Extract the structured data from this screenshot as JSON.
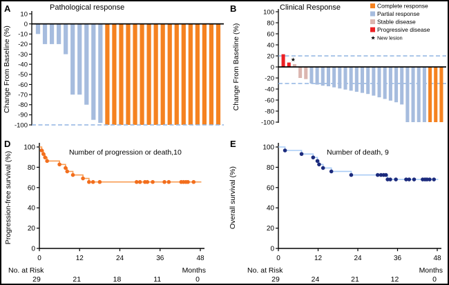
{
  "figure": {
    "background": "#ffffff"
  },
  "colors": {
    "complete": "#F58220",
    "partial": "#A6BCDE",
    "stable": "#DBB6B0",
    "progressive": "#EC2024",
    "star": "#EC2024",
    "dash": "#8FB4E2",
    "axis": "#000000",
    "km_d_line": "#F89C52",
    "km_d_dot": "#F26E1D",
    "km_e_line": "#A9CBF5",
    "km_e_dot": "#1C2B7D"
  },
  "chart_data": [
    {
      "id": "A",
      "panel_label": "A",
      "type": "bar",
      "title": "Pathological response",
      "ylabel": "Change From Baseline (%)",
      "ylim": [
        -100,
        10
      ],
      "yticks": [
        10,
        0,
        -10,
        -20,
        -30,
        -40,
        -50,
        -60,
        -70,
        -80,
        -90,
        -100
      ],
      "dashed_lines": [
        -100
      ],
      "bars": [
        {
          "value": -10,
          "category": "partial"
        },
        {
          "value": -20,
          "category": "partial"
        },
        {
          "value": -20,
          "category": "partial"
        },
        {
          "value": -20,
          "category": "partial"
        },
        {
          "value": -30,
          "category": "partial"
        },
        {
          "value": -70,
          "category": "partial"
        },
        {
          "value": -70,
          "category": "partial"
        },
        {
          "value": -80,
          "category": "partial"
        },
        {
          "value": -95,
          "category": "partial"
        },
        {
          "value": -98,
          "category": "partial"
        },
        {
          "value": -100,
          "category": "complete"
        },
        {
          "value": -100,
          "category": "complete"
        },
        {
          "value": -100,
          "category": "complete"
        },
        {
          "value": -100,
          "category": "complete"
        },
        {
          "value": -100,
          "category": "complete"
        },
        {
          "value": -100,
          "category": "complete"
        },
        {
          "value": -100,
          "category": "complete"
        },
        {
          "value": -100,
          "category": "complete"
        },
        {
          "value": -100,
          "category": "complete"
        },
        {
          "value": -100,
          "category": "complete"
        },
        {
          "value": -100,
          "category": "complete"
        },
        {
          "value": -100,
          "category": "complete"
        },
        {
          "value": -100,
          "category": "complete"
        },
        {
          "value": -100,
          "category": "complete"
        },
        {
          "value": -100,
          "category": "complete"
        },
        {
          "value": -100,
          "category": "complete"
        },
        {
          "value": -100,
          "category": "complete"
        }
      ]
    },
    {
      "id": "B",
      "panel_label": "B",
      "type": "bar",
      "title": "Clinical Response",
      "ylabel": "Change From Baseline (%)",
      "ylim": [
        -100,
        100
      ],
      "yticks": [
        100,
        80,
        60,
        40,
        20,
        0,
        -20,
        -40,
        -60,
        -80,
        -100
      ],
      "dashed_lines": [
        20,
        -30
      ],
      "star_annotation": {
        "bar_index": 1,
        "value": 13
      },
      "legend": [
        {
          "label": "Complete response",
          "color": "complete",
          "marker": "square"
        },
        {
          "label": "Partial response",
          "color": "partial",
          "marker": "square"
        },
        {
          "label": "Stable disease",
          "color": "stable",
          "marker": "square"
        },
        {
          "label": "Progressive disease",
          "color": "progressive",
          "marker": "square"
        },
        {
          "label": "New lesion",
          "color": "star",
          "marker": "star"
        }
      ],
      "bars": [
        {
          "value": 23,
          "category": "progressive"
        },
        {
          "value": 8,
          "category": "progressive"
        },
        {
          "value": 5,
          "category": "stable"
        },
        {
          "value": -20,
          "category": "stable"
        },
        {
          "value": -22,
          "category": "stable"
        },
        {
          "value": -30,
          "category": "partial"
        },
        {
          "value": -32,
          "category": "partial"
        },
        {
          "value": -34,
          "category": "partial"
        },
        {
          "value": -35,
          "category": "partial"
        },
        {
          "value": -37,
          "category": "partial"
        },
        {
          "value": -39,
          "category": "partial"
        },
        {
          "value": -41,
          "category": "partial"
        },
        {
          "value": -43,
          "category": "partial"
        },
        {
          "value": -45,
          "category": "partial"
        },
        {
          "value": -47,
          "category": "partial"
        },
        {
          "value": -49,
          "category": "partial"
        },
        {
          "value": -52,
          "category": "partial"
        },
        {
          "value": -55,
          "category": "partial"
        },
        {
          "value": -58,
          "category": "partial"
        },
        {
          "value": -61,
          "category": "partial"
        },
        {
          "value": -64,
          "category": "partial"
        },
        {
          "value": -68,
          "category": "partial"
        },
        {
          "value": -100,
          "category": "partial"
        },
        {
          "value": -100,
          "category": "partial"
        },
        {
          "value": -100,
          "category": "partial"
        },
        {
          "value": -100,
          "category": "partial"
        },
        {
          "value": -100,
          "category": "complete"
        },
        {
          "value": -100,
          "category": "complete"
        },
        {
          "value": -100,
          "category": "complete"
        }
      ]
    },
    {
      "id": "D",
      "panel_label": "D",
      "type": "km",
      "annotation": "Number of progression or death,10",
      "ylabel": "Progression-free survival (%)",
      "months_label": "Months",
      "at_risk_label": "No. at Risk",
      "xticks": [
        0,
        12,
        24,
        36,
        48
      ],
      "yticks": [
        0,
        20,
        40,
        60,
        80,
        100
      ],
      "xlim": [
        0,
        48
      ],
      "ylim": [
        0,
        100
      ],
      "line_color": "km_d_line",
      "dot_color": "km_d_dot",
      "events": [
        [
          0,
          100
        ],
        [
          0.7,
          96.6
        ],
        [
          1.2,
          93.1
        ],
        [
          1.7,
          89.7
        ],
        [
          2.3,
          86.2
        ],
        [
          6,
          82.8
        ],
        [
          7.8,
          79.3
        ],
        [
          8.3,
          75.9
        ],
        [
          10,
          72.4
        ],
        [
          13,
          69
        ],
        [
          14.8,
          65.5
        ]
      ],
      "curve_end": 48.3,
      "censors": [
        [
          16,
          65.5
        ],
        [
          18,
          65.5
        ],
        [
          29,
          65.5
        ],
        [
          30,
          65.5
        ],
        [
          31.5,
          65.5
        ],
        [
          32.2,
          65.5
        ],
        [
          33.8,
          65.5
        ],
        [
          37.3,
          65.5
        ],
        [
          38.6,
          65.5
        ],
        [
          42.3,
          65.5
        ],
        [
          43,
          65.5
        ],
        [
          43.7,
          65.5
        ],
        [
          44.3,
          65.5
        ],
        [
          46,
          65.5
        ]
      ],
      "at_risk": [
        "29",
        "21",
        "18",
        "11",
        "0"
      ]
    },
    {
      "id": "E",
      "panel_label": "E",
      "type": "km",
      "annotation": "Number of death, 9",
      "ylabel": "Overall survival (%)",
      "months_label": "Months",
      "at_risk_label": "No. at Risk",
      "xticks": [
        0,
        12,
        24,
        36,
        48
      ],
      "yticks": [
        0,
        20,
        40,
        60,
        80,
        100
      ],
      "xlim": [
        0,
        48
      ],
      "ylim": [
        0,
        100
      ],
      "line_color": "km_e_line",
      "dot_color": "km_e_dot",
      "events": [
        [
          0,
          100
        ],
        [
          2,
          96.6
        ],
        [
          7,
          93.1
        ],
        [
          10.5,
          89.7
        ],
        [
          11.8,
          86.2
        ],
        [
          12.3,
          82.8
        ],
        [
          13.5,
          79.3
        ],
        [
          16,
          75.9
        ],
        [
          22,
          72.4
        ],
        [
          33,
          68
        ]
      ],
      "curve_end": 48.3,
      "censors": [
        [
          30,
          72.4
        ],
        [
          31,
          72.4
        ],
        [
          31.8,
          72.4
        ],
        [
          32.5,
          72.4
        ],
        [
          33.8,
          68
        ],
        [
          35.5,
          68
        ],
        [
          38.6,
          68
        ],
        [
          39.5,
          68
        ],
        [
          41,
          68
        ],
        [
          43.6,
          68
        ],
        [
          44.3,
          68
        ],
        [
          44.9,
          68
        ],
        [
          45.7,
          68
        ],
        [
          47,
          68
        ]
      ],
      "at_risk": [
        "29",
        "24",
        "21",
        "12",
        "0"
      ]
    }
  ]
}
